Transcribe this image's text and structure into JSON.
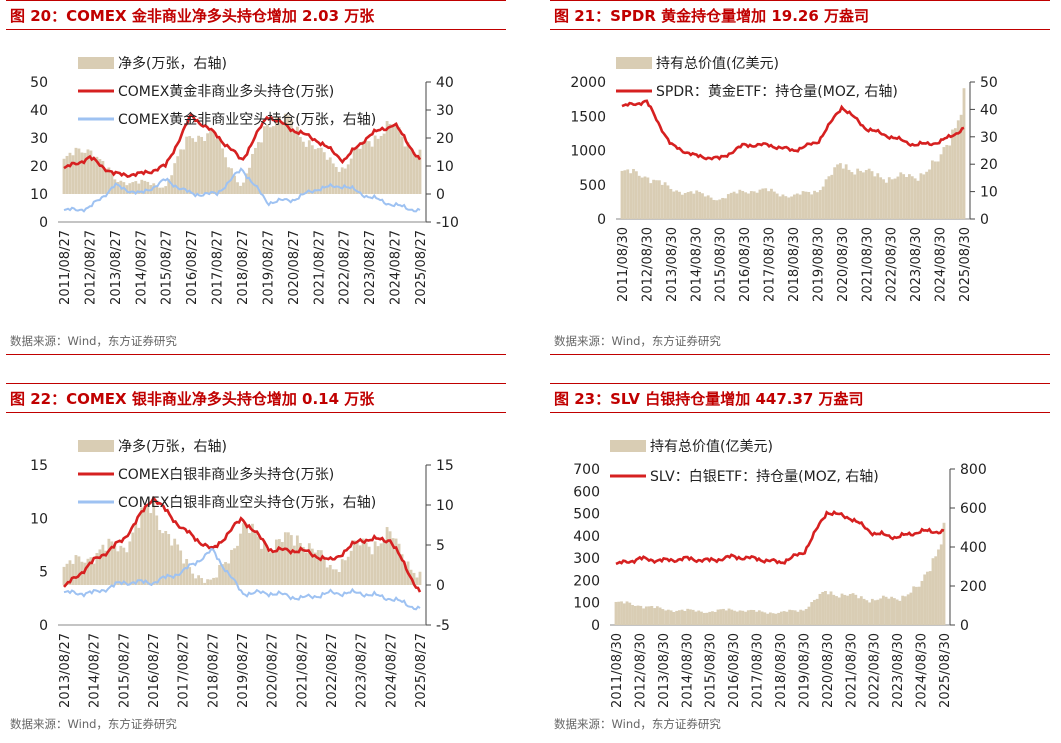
{
  "source_label": "数据来源：Wind，东方证券研究",
  "charts": [
    {
      "title": "图 20：COMEX 金非商业净多头持仓增加 2.03 万张",
      "legend": {
        "bar": "净多(万张，右轴)",
        "line1": "COMEX黄金非商业多头持仓(万张)",
        "line2": "COMEX黄金非商业空头持仓(万张，右轴)"
      }
    },
    {
      "title": "图 21：SPDR 黄金持仓量增加 19.26 万盎司",
      "legend": {
        "bar": "持有总价值(亿美元)",
        "line1": "SPDR：黄金ETF：持仓量(MOZ, 右轴)"
      }
    },
    {
      "title": "图 22：COMEX 银非商业净多头持仓增加 0.14 万张",
      "legend": {
        "bar": "净多(万张，右轴)",
        "line1": "COMEX白银非商业多头持仓(万张)",
        "line2": "COMEX白银非商业空头持仓(万张，右轴)"
      }
    },
    {
      "title": "图 23：SLV 白银持仓量增加 447.37 万盎司",
      "legend": {
        "bar": "持有总价值(亿美元)",
        "line1": "SLV：白银ETF：持仓量(MOZ, 右轴)"
      }
    }
  ],
  "colors": {
    "title": "#c00000",
    "bar": "#d9cdb4",
    "line_red": "#d62020",
    "line_blue": "#9ec2f2"
  },
  "chart_data": [
    {
      "type": "line",
      "x": [
        "2011/08/27",
        "2012/08/27",
        "2013/08/27",
        "2014/08/27",
        "2015/08/27",
        "2016/08/27",
        "2017/08/27",
        "2018/08/27",
        "2019/08/27",
        "2020/08/27",
        "2021/08/27",
        "2022/08/27",
        "2023/08/27",
        "2024/08/27",
        "2025/08/27"
      ],
      "ylim_left": [
        0,
        50
      ],
      "yticks_left": [
        0,
        10,
        20,
        30,
        40,
        50
      ],
      "ylim_right": [
        -10,
        40
      ],
      "yticks_right": [
        -10,
        0,
        10,
        20,
        30,
        40
      ],
      "series": [
        {
          "name": "净多(万张，右轴)",
          "kind": "bar",
          "axis": "right",
          "values": [
            12,
            17,
            5,
            4,
            3,
            22,
            20,
            2,
            27,
            25,
            15,
            9,
            20,
            24,
            14
          ]
        },
        {
          "name": "COMEX黄金非商业多头持仓(万张)",
          "kind": "line",
          "axis": "left",
          "values": [
            19,
            23,
            17,
            17,
            20,
            38,
            31,
            22,
            38,
            33,
            29,
            22,
            31,
            35,
            22
          ]
        },
        {
          "name": "COMEX黄金非商业空头持仓(万张，右轴)",
          "kind": "line",
          "axis": "left",
          "values": [
            4,
            5,
            13,
            10,
            15,
            10,
            10,
            19,
            7,
            8,
            12,
            13,
            9,
            6,
            4
          ]
        }
      ]
    },
    {
      "type": "line",
      "x": [
        "2011/08/30",
        "2012/08/30",
        "2013/08/30",
        "2014/08/30",
        "2015/08/30",
        "2016/08/30",
        "2017/08/30",
        "2018/08/30",
        "2019/08/30",
        "2020/08/30",
        "2021/08/30",
        "2022/08/30",
        "2023/08/30",
        "2024/08/30",
        "2025/08/30"
      ],
      "ylim_left": [
        0,
        2000
      ],
      "yticks_left": [
        0,
        500,
        1000,
        1500,
        2000
      ],
      "ylim_right": [
        0,
        50
      ],
      "yticks_right": [
        0,
        10,
        20,
        30,
        40,
        50
      ],
      "series": [
        {
          "name": "持有总价值(亿美元)",
          "kind": "bar",
          "axis": "left",
          "values": [
            680,
            640,
            430,
            380,
            290,
            420,
            410,
            330,
            420,
            800,
            670,
            600,
            620,
            830,
            1750
          ]
        },
        {
          "name": "SPDR：黄金ETF：持仓量(MOZ, 右轴)",
          "kind": "line",
          "axis": "right",
          "values": [
            41,
            43,
            27,
            23,
            22,
            27,
            27,
            25,
            28,
            41,
            33,
            30,
            27,
            28,
            33
          ]
        }
      ]
    },
    {
      "type": "line",
      "x": [
        "2013/08/27",
        "2014/08/27",
        "2015/08/27",
        "2016/08/27",
        "2017/08/27",
        "2018/08/27",
        "2019/08/27",
        "2020/08/27",
        "2021/08/27",
        "2022/08/27",
        "2023/08/27",
        "2024/08/27",
        "2025/08/27"
      ],
      "ylim_left": [
        0,
        15
      ],
      "yticks_left": [
        0,
        5,
        10,
        15
      ],
      "ylim_right": [
        -5,
        15
      ],
      "yticks_right": [
        -5,
        0,
        5,
        10,
        15
      ],
      "series": [
        {
          "name": "净多(万张，右轴)",
          "kind": "bar",
          "axis": "right",
          "values": [
            2,
            4,
            5,
            10,
            3,
            0,
            7,
            5,
            6,
            2,
            5,
            6,
            1
          ]
        },
        {
          "name": "COMEX白银非商业多头持仓(万张)",
          "kind": "line",
          "axis": "left",
          "values": [
            3.5,
            6,
            8,
            12,
            9,
            7,
            10,
            7,
            7,
            6,
            8,
            8,
            3
          ]
        },
        {
          "name": "COMEX白银非商业空头持仓(万张，右轴)",
          "kind": "line",
          "axis": "left",
          "values": [
            3,
            3,
            4,
            4,
            5,
            7,
            3,
            3,
            2.5,
            3,
            3,
            2.5,
            1.5
          ]
        }
      ]
    },
    {
      "type": "line",
      "x": [
        "2011/08/30",
        "2012/08/30",
        "2013/08/30",
        "2014/08/30",
        "2015/08/30",
        "2016/08/30",
        "2017/08/30",
        "2018/08/30",
        "2019/08/30",
        "2020/08/30",
        "2021/08/30",
        "2022/08/30",
        "2023/08/30",
        "2024/08/30",
        "2025/08/30"
      ],
      "ylim_left": [
        0,
        700
      ],
      "yticks_left": [
        0,
        100,
        200,
        300,
        400,
        500,
        600,
        700
      ],
      "ylim_right": [
        0,
        800
      ],
      "yticks_right": [
        0,
        200,
        400,
        600,
        800
      ],
      "series": [
        {
          "name": "持有总价值(亿美元)",
          "kind": "bar",
          "axis": "left",
          "values": [
            100,
            90,
            70,
            65,
            60,
            70,
            60,
            55,
            70,
            150,
            130,
            115,
            120,
            170,
            420
          ]
        },
        {
          "name": "SLV：白银ETF：持仓量(MOZ, 右轴)",
          "kind": "line",
          "axis": "right",
          "values": [
            310,
            340,
            330,
            340,
            330,
            350,
            340,
            320,
            370,
            580,
            550,
            470,
            450,
            480,
            480
          ]
        }
      ]
    }
  ]
}
